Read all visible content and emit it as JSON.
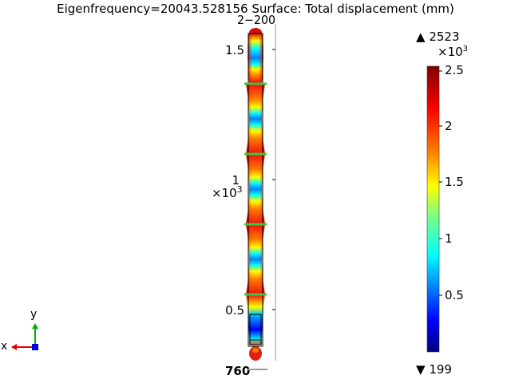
{
  "title": "Eigenfrequency=20043.528156  Surface: Total displacement (mm)",
  "y_axis": {
    "ticks": [
      "1.5",
      "1",
      "0.5"
    ],
    "multiplier_base": "×10",
    "multiplier_exp": "3",
    "top_overlap_text": "2−200",
    "bottom_overlap_text": "760"
  },
  "colorbar": {
    "max_label": "2523",
    "min_label": "199",
    "max_marker": "▲",
    "min_marker": "▼",
    "multiplier_base": "×10",
    "multiplier_exp": "3",
    "ticks": [
      "2.5",
      "2",
      "1.5",
      "1",
      "0.5"
    ],
    "colors": [
      "#00007f",
      "#0000ff",
      "#007fff",
      "#00ffff",
      "#7fff7f",
      "#ffff00",
      "#ff7f00",
      "#ff0000",
      "#7f0000"
    ]
  },
  "axis_triad": {
    "x_label": "x",
    "y_label": "y",
    "x_color": "#e00000",
    "y_color": "#00b000",
    "z_color": "#0000e0"
  },
  "model": {
    "boundary_color": "#000000",
    "seam_color": "#3cc83c"
  }
}
